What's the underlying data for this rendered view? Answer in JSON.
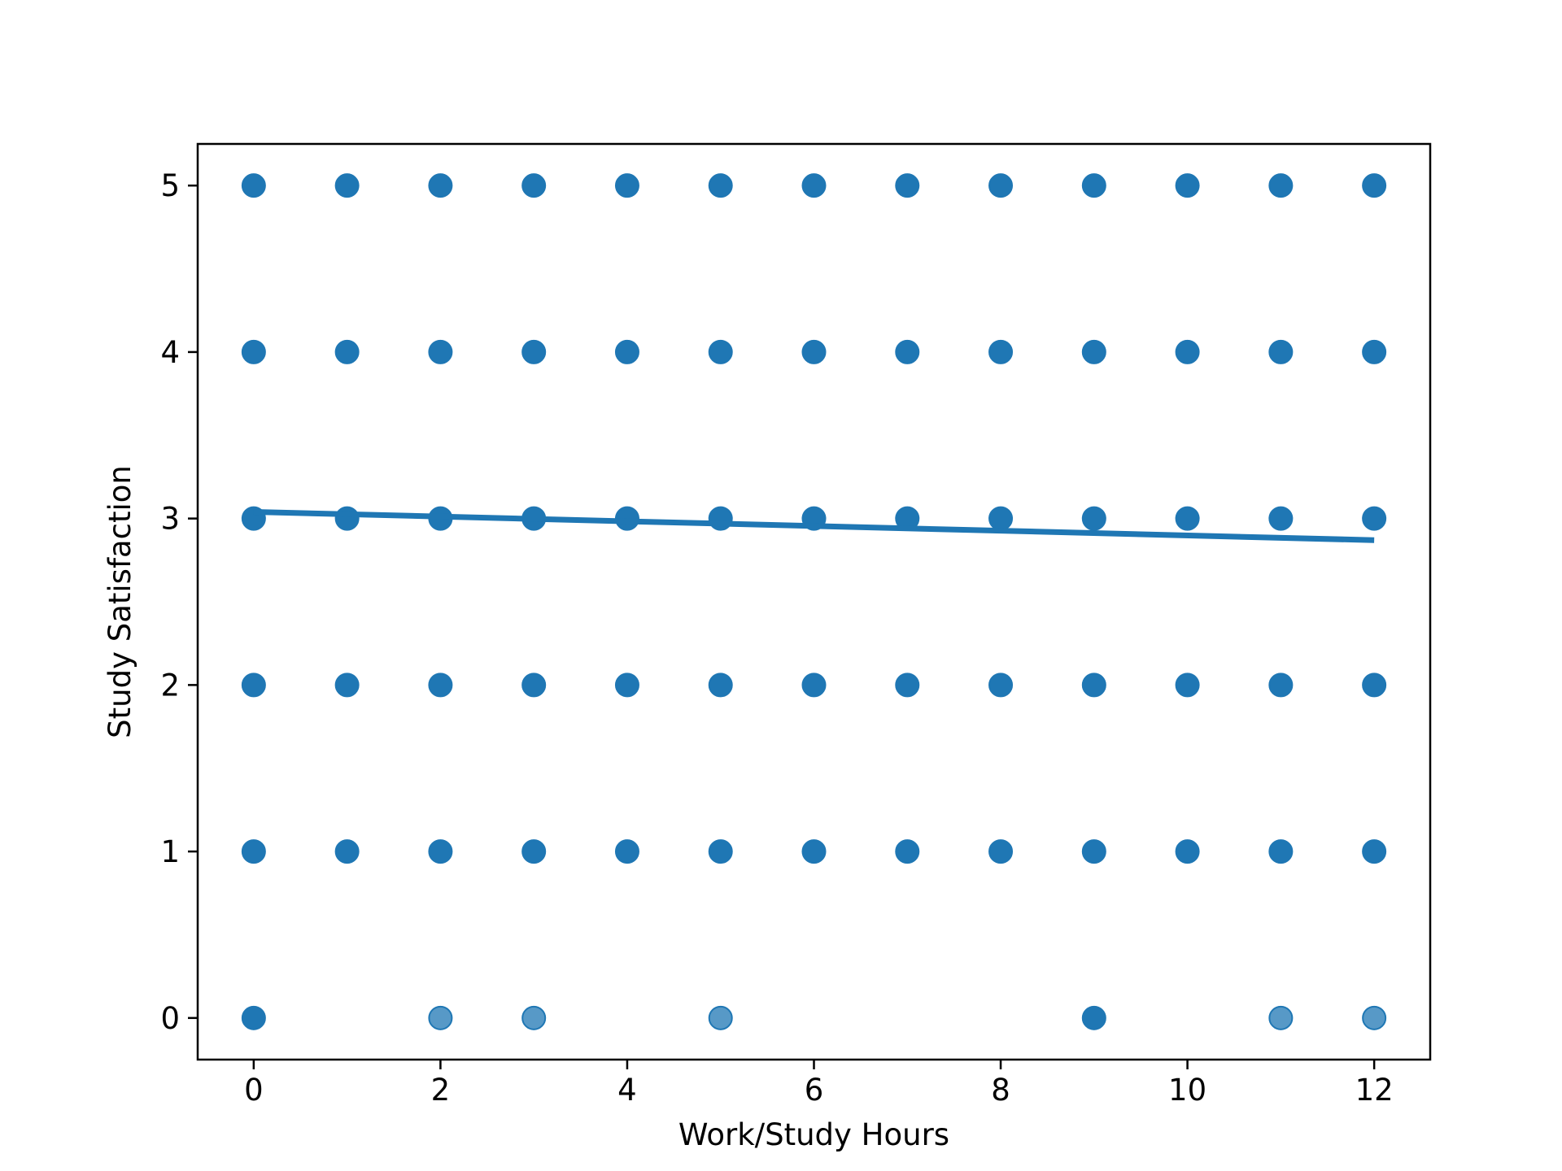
{
  "chart_data": {
    "type": "scatter",
    "xlabel": "Work/Study Hours",
    "ylabel": "Study Satisfaction",
    "xlim": [
      -0.6,
      12.6
    ],
    "ylim": [
      -0.25,
      5.25
    ],
    "xticks": [
      0,
      2,
      4,
      6,
      8,
      10,
      12
    ],
    "yticks": [
      0,
      1,
      2,
      3,
      4,
      5
    ],
    "grid": false,
    "colors": {
      "points": "#1f77b4",
      "line": "#1f77b4"
    },
    "points": {
      "x_values": [
        0,
        1,
        2,
        3,
        4,
        5,
        6,
        7,
        8,
        9,
        10,
        11,
        12
      ],
      "y_levels_full": [
        1,
        2,
        3,
        4,
        5
      ],
      "y0_dark_x": [
        0,
        9
      ],
      "y0_light_x": [
        2,
        3,
        5,
        11,
        12
      ]
    },
    "regression_line": {
      "x": [
        0,
        12
      ],
      "y": [
        3.04,
        2.87
      ]
    }
  }
}
